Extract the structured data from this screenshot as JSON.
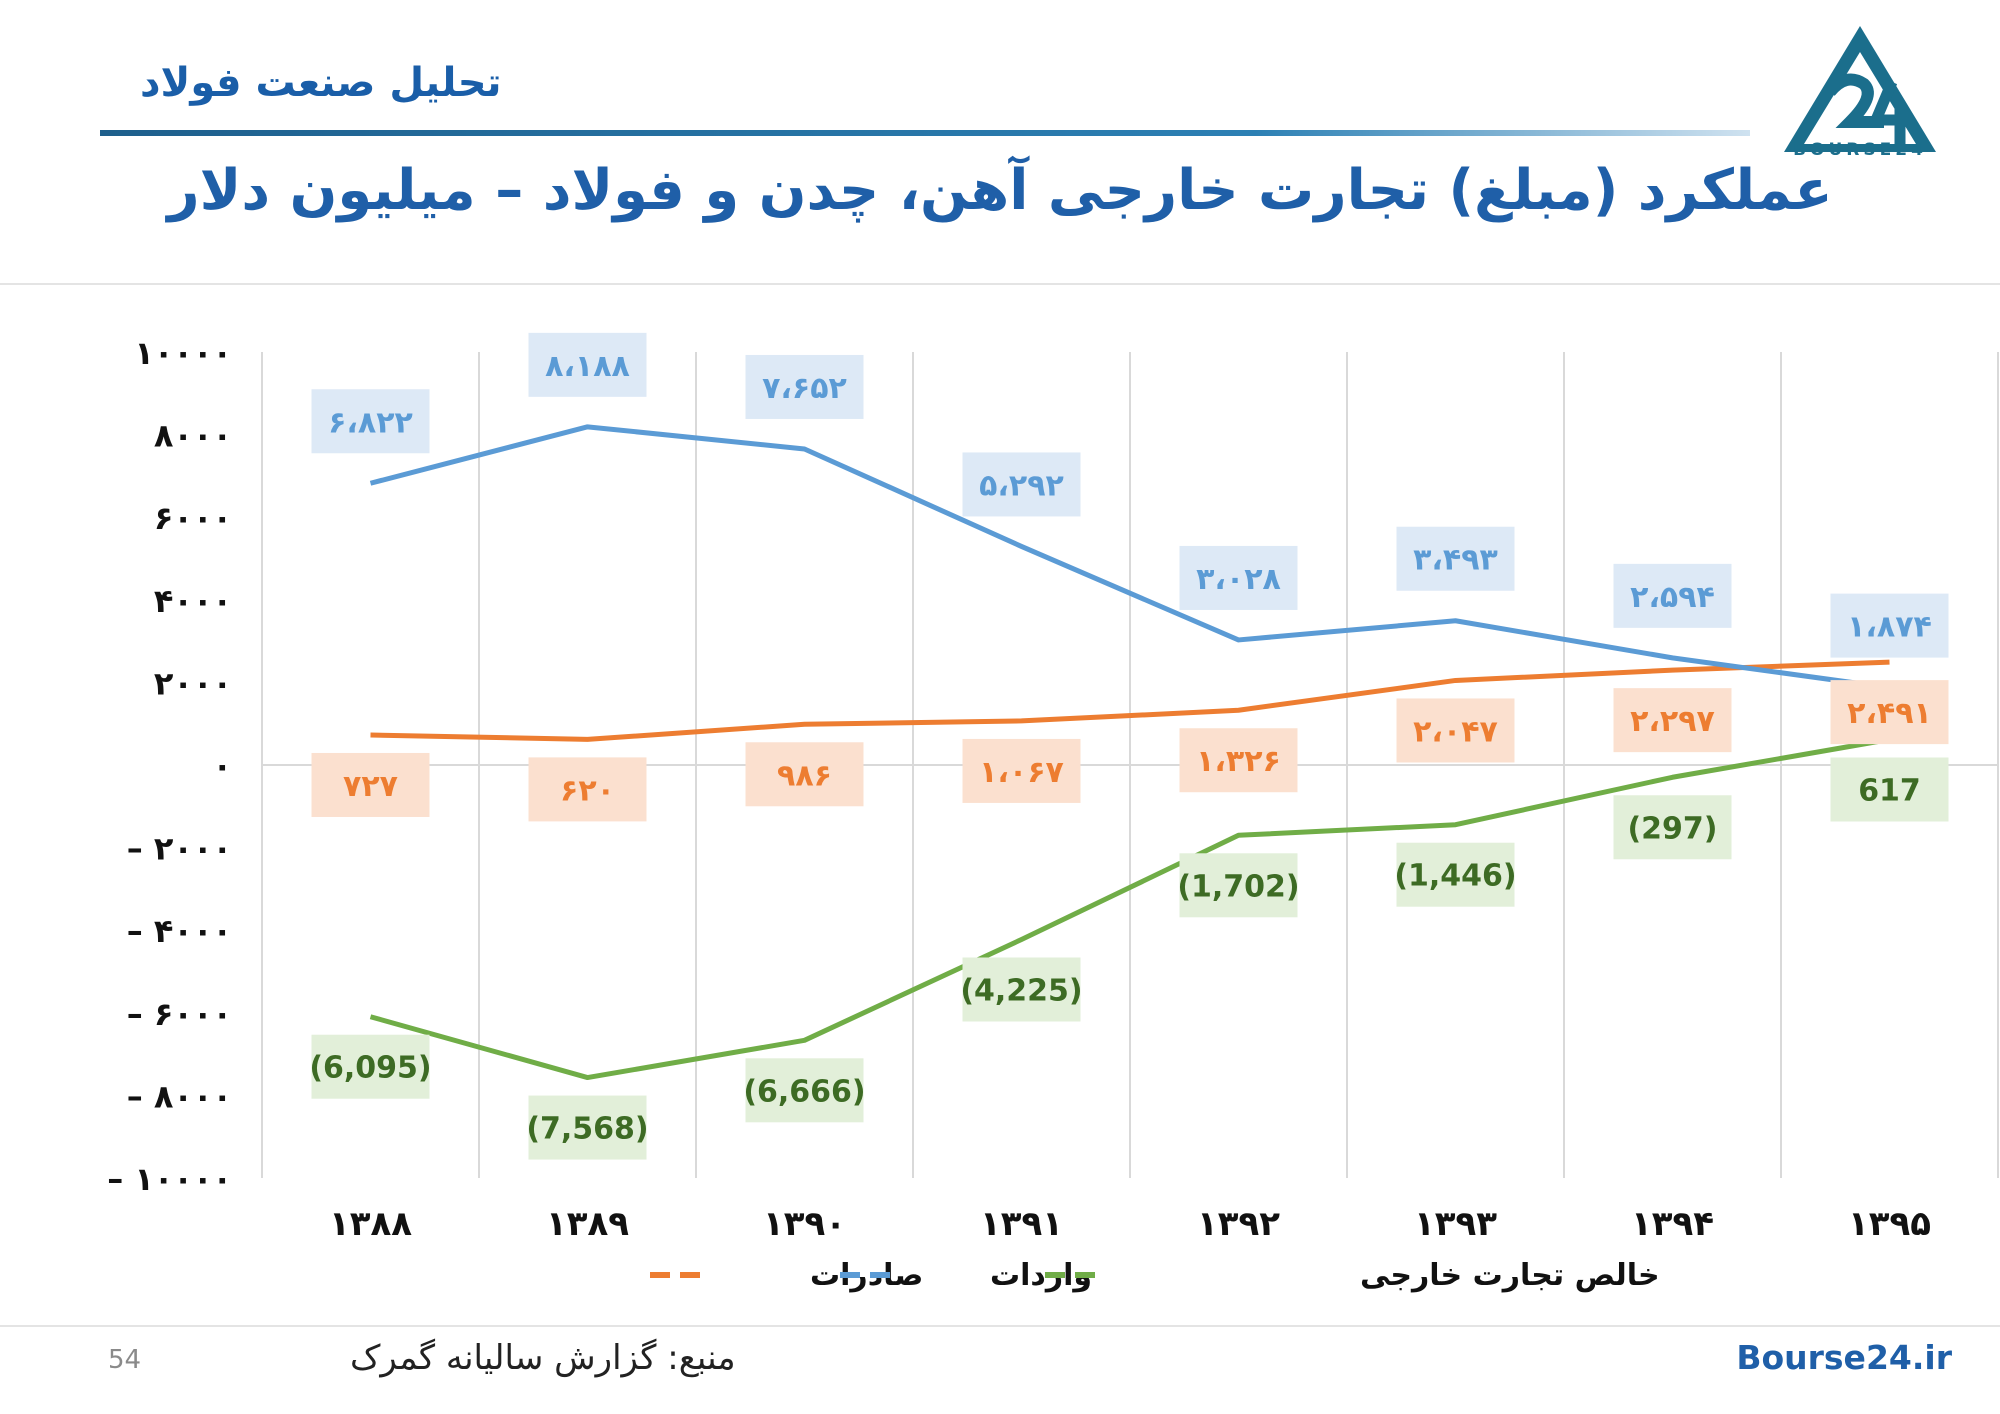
{
  "header": {
    "brand": "تحلیل صنعت فولاد",
    "logo_text": "BOURSE24"
  },
  "title": "عملکرد (مبلغ) تجارت خارجی آهن، چدن و فولاد – میلیون دلار",
  "footer": {
    "page_number": "54",
    "source": "منبع: گزارش سالیانه گمرک",
    "site": "Bourse24.ir"
  },
  "colors": {
    "brand": "#1f5fa8",
    "exports": "#ed7d31",
    "imports": "#5b9bd5",
    "net": "#70ad47"
  },
  "chart_data": {
    "type": "line",
    "categories": [
      "۱۳۸۸",
      "۱۳۸۹",
      "۱۳۹۰",
      "۱۳۹۱",
      "۱۳۹۲",
      "۱۳۹۳",
      "۱۳۹۴",
      "۱۳۹۵"
    ],
    "ylim": [
      -10000,
      10000
    ],
    "yticks": [
      {
        "value": 10000,
        "label": "۱۰۰۰۰"
      },
      {
        "value": 8000,
        "label": "۸۰۰۰"
      },
      {
        "value": 6000,
        "label": "۶۰۰۰"
      },
      {
        "value": 4000,
        "label": "۴۰۰۰"
      },
      {
        "value": 2000,
        "label": "۲۰۰۰"
      },
      {
        "value": 0,
        "label": "۰"
      },
      {
        "value": -2000,
        "label": "– ۲۰۰۰"
      },
      {
        "value": -4000,
        "label": "– ۴۰۰۰"
      },
      {
        "value": -6000,
        "label": "– ۶۰۰۰"
      },
      {
        "value": -8000,
        "label": "– ۸۰۰۰"
      },
      {
        "value": -10000,
        "label": "– ۱۰۰۰۰"
      }
    ],
    "grid": "vertical",
    "legend_position": "bottom",
    "series": [
      {
        "name": "صادرات",
        "color": "#ed7d31",
        "label_bg": "#fbe0cf",
        "label_position": "below",
        "values": [
          727,
          620,
          986,
          1067,
          1326,
          2047,
          2297,
          2491
        ],
        "labels": [
          "۷۲۷",
          "۶۲۰",
          "۹۸۶",
          "۱،۰۶۷",
          "۱،۳۲۶",
          "۲،۰۴۷",
          "۲،۲۹۷",
          "۲،۴۹۱"
        ]
      },
      {
        "name": "واردات",
        "color": "#5b9bd5",
        "label_bg": "#dde9f6",
        "label_position": "above",
        "values": [
          6822,
          8188,
          7652,
          5292,
          3028,
          3493,
          2594,
          1874
        ],
        "labels": [
          "۶،۸۲۲",
          "۸،۱۸۸",
          "۷،۶۵۲",
          "۵،۲۹۲",
          "۳،۰۲۸",
          "۳،۴۹۳",
          "۲،۵۹۴",
          "۱،۸۷۴"
        ]
      },
      {
        "name": "خالص تجارت خارجی",
        "color": "#70ad47",
        "label_bg": "#e2efd9",
        "label_position": "below",
        "values": [
          -6095,
          -7568,
          -6666,
          -4225,
          -1702,
          -1446,
          -297,
          617
        ],
        "labels": [
          "(6,095)",
          "(7,568)",
          "(6,666)",
          "(4,225)",
          "(1,702)",
          "(1,446)",
          "(297)",
          "617"
        ]
      }
    ]
  }
}
